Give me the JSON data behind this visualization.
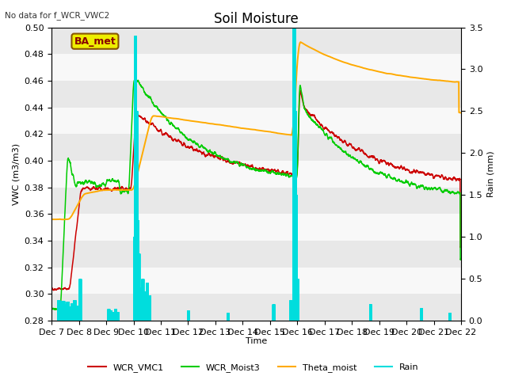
{
  "title": "Soil Moisture",
  "subtitle": "No data for f_WCR_VWC2",
  "ylabel_left": "VWC (m3/m3)",
  "ylabel_right": "Rain (mm)",
  "xlabel": "Time",
  "ylim_left": [
    0.28,
    0.5
  ],
  "ylim_right": [
    0.0,
    3.5
  ],
  "yticks_left": [
    0.28,
    0.3,
    0.32,
    0.34,
    0.36,
    0.38,
    0.4,
    0.42,
    0.44,
    0.46,
    0.48,
    0.5
  ],
  "yticks_right": [
    0.0,
    0.5,
    1.0,
    1.5,
    2.0,
    2.5,
    3.0,
    3.5
  ],
  "bg_color": "#ffffff",
  "plot_bg_color": "#f0f0f0",
  "band_colors": [
    "#e8e8e8",
    "#f8f8f8"
  ],
  "line_colors": [
    "#cc0000",
    "#00cc00",
    "#ffaa00",
    "#00cccc"
  ],
  "ba_met_box_facecolor": "#eeee00",
  "ba_met_box_edgecolor": "#885500",
  "ba_met_text_color": "#880000",
  "x_tick_labels": [
    "Dec 7",
    "Dec 8",
    "Dec 9",
    "Dec 10",
    "Dec 11",
    "Dec 12",
    "Dec 13",
    "Dec 14",
    "Dec 15",
    "Dec 16",
    "Dec 17",
    "Dec 18",
    "Dec 19",
    "Dec 20",
    "Dec 21",
    "Dec 22"
  ],
  "figsize": [
    6.4,
    4.8
  ],
  "dpi": 100
}
